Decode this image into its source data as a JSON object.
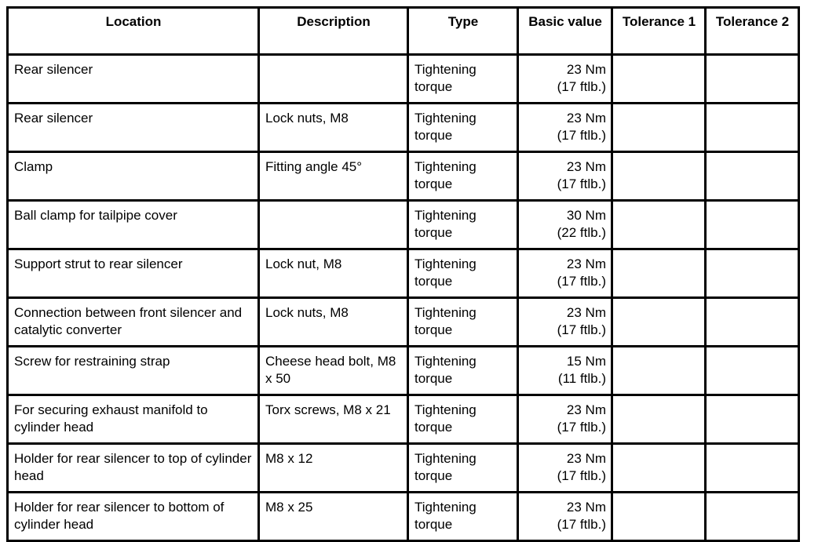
{
  "table": {
    "header": [
      "Location",
      "Description",
      "Type",
      "Basic value",
      "Tolerance 1",
      "Tolerance 2"
    ],
    "rows": [
      {
        "location": "Rear silencer",
        "type": "Tightening torque",
        "basic_value": "23 Nm\n(17 ftlb.)"
      },
      {
        "location": "Rear silencer",
        "description": "Lock nuts, M8",
        "type": "Tightening torque",
        "basic_value": "23 Nm\n(17 ftlb.)"
      },
      {
        "location": "Clamp",
        "description": "Fitting angle 45°",
        "type": "Tightening torque",
        "basic_value": "23 Nm\n(17 ftlb.)"
      },
      {
        "location": "Ball clamp for tailpipe cover",
        "type": "Tightening torque",
        "basic_value": "30 Nm\n(22 ftlb.)"
      },
      {
        "location": "Support strut to rear silencer",
        "description": "Lock nut, M8",
        "type": "Tightening torque",
        "basic_value": "23 Nm\n(17 ftlb.)"
      },
      {
        "location": "Connection between front silencer and catalytic converter",
        "description": "Lock nuts, M8",
        "type": "Tightening torque",
        "basic_value": "23 Nm\n(17 ftlb.)"
      },
      {
        "location": "Screw for restraining strap",
        "description": "Cheese head bolt, M8 x 50",
        "type": "Tightening torque",
        "basic_value": "15 Nm\n(11 ftlb.)"
      },
      {
        "location": "For securing exhaust manifold to cylinder head",
        "description": "Torx screws, M8 x 21",
        "type": "Tightening torque",
        "basic_value": "23 Nm\n(17 ftlb.)"
      },
      {
        "location": "Holder for rear silencer to top of cylinder head",
        "description": "M8 x 12",
        "type": "Tightening torque",
        "basic_value": "23 Nm\n(17 ftlb.)"
      },
      {
        "location": "Holder for rear silencer to bottom of cylinder head",
        "description": "M8 x 25",
        "type": "Tightening torque",
        "basic_value": "23 Nm\n(17 ftlb.)"
      }
    ]
  }
}
